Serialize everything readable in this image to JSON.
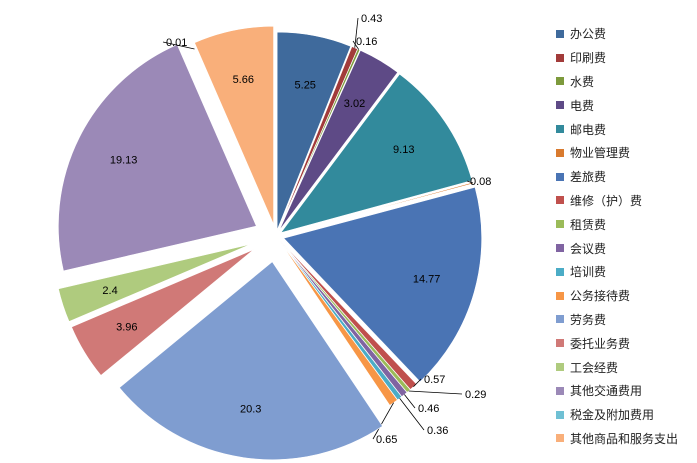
{
  "chart_data": {
    "type": "pie",
    "exploded": true,
    "start_angle": "12 o'clock",
    "direction": "clockwise",
    "legend_position": "right",
    "categories": [
      "办公费",
      "印刷费",
      "水费",
      "电费",
      "邮电费",
      "物业管理费",
      "差旅费",
      "维修（护）费",
      "租赁费",
      "会议费",
      "培训费",
      "公务接待费",
      "劳务费",
      "委托业务费",
      "工会经费",
      "其他交通费用",
      "税金及附加费用",
      "其他商品和服务支出"
    ],
    "values": [
      5.25,
      0.43,
      0.16,
      3.02,
      9.13,
      0.08,
      14.77,
      0.57,
      0.29,
      0.46,
      0.36,
      0.65,
      20.3,
      3.96,
      2.4,
      19.13,
      0.01,
      5.66
    ],
    "labels": [
      "5.25",
      "0.43",
      "0.16",
      "3.02",
      "9.13",
      "0.08",
      "14.77",
      "0.57",
      "0.29",
      "0.46",
      "0.36",
      "0.65",
      "20.3",
      "3.96",
      "2.4",
      "19.13",
      "0.01",
      "5.66"
    ],
    "colors": [
      "#3F6A9C",
      "#A23B3A",
      "#7D9A3C",
      "#5E4A86",
      "#328A9C",
      "#D97A2E",
      "#4A74B4",
      "#C0504D",
      "#9BBB59",
      "#8064A2",
      "#4BACC6",
      "#F79646",
      "#7F9DD0",
      "#D07977",
      "#AFCB7E",
      "#9B89B7",
      "#6FC0D4",
      "#F9AF7A"
    ]
  }
}
